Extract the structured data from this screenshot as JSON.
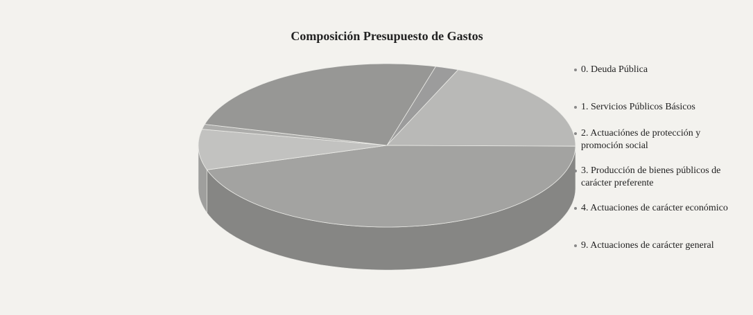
{
  "chart_data": {
    "type": "pie3d",
    "title": "Composición Presupuesto de Gastos",
    "categories": [
      "0. Deuda Pública",
      "1. Servicios Públicos Básicos",
      "2. Actuaciónes de protección y promoción social",
      "3. Producción de bienes públicos de carácter preferente",
      "4. Actuaciones de carácter económico",
      "9. Actuaciones de carácter general"
    ],
    "values": [
      2,
      19,
      45,
      8,
      1,
      25
    ],
    "colors": [
      "#9c9c9c",
      "#b9b9b7",
      "#a3a3a1",
      "#c2c2c0",
      "#adadab",
      "#979795"
    ],
    "legend": "right"
  }
}
